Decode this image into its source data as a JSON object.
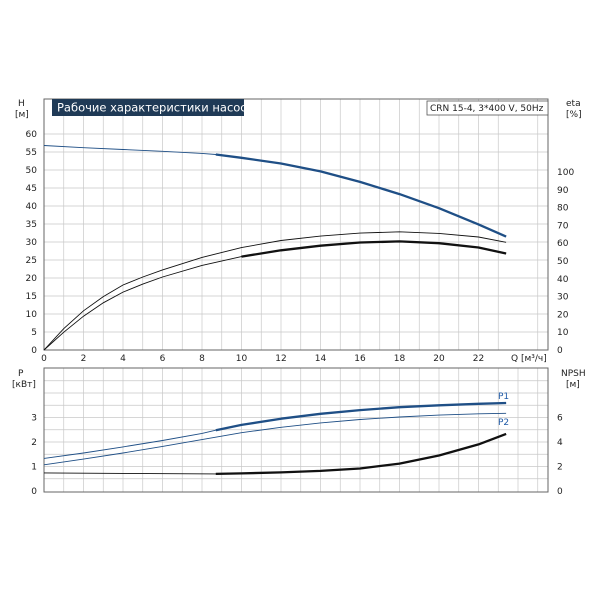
{
  "chart_data": [
    {
      "type": "line",
      "title": "Рабочие характеристики насоса",
      "model": "CRN 15-4, 3*400 V, 50Hz",
      "xlabel": "Q [м³/ч]",
      "x_ticks": [
        "0",
        "2",
        "4",
        "6",
        "8",
        "10",
        "12",
        "14",
        "16",
        "18",
        "20",
        "22"
      ],
      "xlim": [
        0,
        25.5
      ],
      "left_axis": {
        "label_top": "H",
        "label_unit": "[м]",
        "ylim": [
          0,
          65
        ],
        "ticks": [
          "0",
          "5",
          "10",
          "15",
          "20",
          "25",
          "30",
          "35",
          "40",
          "45",
          "50",
          "55",
          "60"
        ]
      },
      "right_axis": {
        "label_top": "eta",
        "label_unit": "[%]",
        "ticks": [
          "0",
          "10",
          "20",
          "30",
          "40",
          "50",
          "60",
          "70",
          "80",
          "90",
          "100"
        ]
      },
      "series": [
        {
          "color": "#1f4f86",
          "axis": "left",
          "x": [
            0,
            2,
            4,
            6,
            8,
            8.7,
            10,
            12,
            14,
            16,
            18,
            20,
            22,
            23.4
          ],
          "y": [
            56.8,
            56.2,
            55.7,
            55.2,
            54.6,
            54.3,
            53.4,
            51.8,
            49.6,
            46.7,
            43.3,
            39.4,
            34.9,
            31.5
          ],
          "bold_from": 8.7
        },
        {
          "color": "#111111",
          "axis": "right",
          "x": [
            0,
            1,
            2,
            3,
            4,
            5,
            6,
            8,
            10,
            12,
            14,
            16,
            18,
            20,
            22,
            23.4
          ],
          "y": [
            0,
            12,
            22,
            30,
            36.5,
            41,
            45,
            52,
            57.5,
            61.5,
            64,
            65.7,
            66.4,
            65.5,
            63.5,
            60.5
          ],
          "bold_from": 99
        },
        {
          "color": "#111111",
          "axis": "right",
          "x": [
            0,
            1,
            2,
            3,
            4,
            5,
            6,
            8,
            10,
            12,
            14,
            16,
            18,
            20,
            22,
            23.4
          ],
          "y": [
            0,
            10,
            19,
            26.5,
            32.5,
            37,
            41,
            47.5,
            52.5,
            56,
            58.6,
            60.4,
            61,
            60,
            57.6,
            54.2
          ],
          "bold_from": 8.7
        }
      ]
    },
    {
      "type": "line",
      "xlim": [
        0,
        25.5
      ],
      "left_axis": {
        "label_top": "P",
        "label_unit": "[кВт]",
        "ylim": [
          0,
          4
        ],
        "ticks": [
          "0",
          "1",
          "2",
          "3"
        ]
      },
      "right_axis": {
        "label_top": "NPSH",
        "label_unit": "[м]",
        "ticks": [
          "0",
          "2",
          "4",
          "6"
        ]
      },
      "series": [
        {
          "name": "P1",
          "color": "#1f4f86",
          "axis": "left",
          "x": [
            0,
            2,
            4,
            6,
            8,
            8.7,
            10,
            12,
            14,
            16,
            18,
            20,
            22,
            23.4
          ],
          "y": [
            1.33,
            1.55,
            1.8,
            2.06,
            2.35,
            2.48,
            2.7,
            2.95,
            3.15,
            3.3,
            3.42,
            3.5,
            3.56,
            3.59
          ],
          "bold_from": 8.7
        },
        {
          "name": "P2",
          "color": "#1f4f86",
          "axis": "left",
          "x": [
            0,
            2,
            4,
            6,
            8,
            10,
            12,
            14,
            16,
            18,
            20,
            22,
            23.4
          ],
          "y": [
            1.07,
            1.3,
            1.55,
            1.82,
            2.1,
            2.38,
            2.6,
            2.78,
            2.92,
            3.02,
            3.1,
            3.15,
            3.17
          ],
          "bold_from": 99
        },
        {
          "color": "#111111",
          "axis": "left",
          "x": [
            0,
            4,
            8.7,
            10,
            12,
            14,
            16,
            18,
            20,
            22,
            23.4
          ],
          "y": [
            0.74,
            0.72,
            0.7,
            0.72,
            0.76,
            0.82,
            0.92,
            1.12,
            1.45,
            1.9,
            2.33
          ],
          "bold_from": 8.7
        }
      ]
    }
  ]
}
